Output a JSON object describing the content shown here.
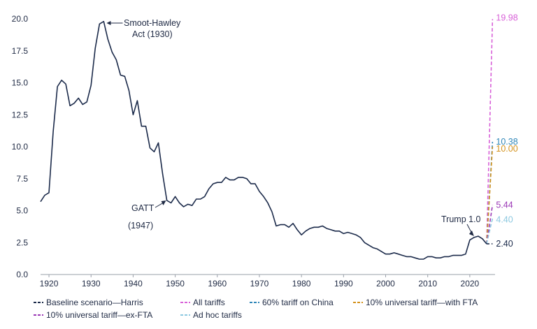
{
  "chart_data": {
    "type": "line",
    "title": "",
    "xlabel": "",
    "ylabel": "",
    "xlim": [
      1918,
      2026
    ],
    "ylim": [
      0,
      20
    ],
    "x_ticks": [
      1920,
      1930,
      1940,
      1950,
      1960,
      1970,
      1980,
      1990,
      2000,
      2010,
      2020
    ],
    "y_ticks": [
      "0.0",
      "2.5",
      "5.0",
      "7.5",
      "10.0",
      "12.5",
      "15.0",
      "17.5",
      "20.0"
    ],
    "grid": false,
    "baseline": {
      "name": "Baseline scenario—Harris",
      "color": "#1b2a4a",
      "x": [
        1918,
        1919,
        1920,
        1921,
        1922,
        1923,
        1924,
        1925,
        1926,
        1927,
        1928,
        1929,
        1930,
        1931,
        1932,
        1933,
        1934,
        1935,
        1936,
        1937,
        1938,
        1939,
        1940,
        1941,
        1942,
        1943,
        1944,
        1945,
        1946,
        1947,
        1948,
        1949,
        1950,
        1951,
        1952,
        1953,
        1954,
        1955,
        1956,
        1957,
        1958,
        1959,
        1960,
        1961,
        1962,
        1963,
        1964,
        1965,
        1966,
        1967,
        1968,
        1969,
        1970,
        1971,
        1972,
        1973,
        1974,
        1975,
        1976,
        1977,
        1978,
        1979,
        1980,
        1981,
        1982,
        1983,
        1984,
        1985,
        1986,
        1987,
        1988,
        1989,
        1990,
        1991,
        1992,
        1993,
        1994,
        1995,
        1996,
        1997,
        1998,
        1999,
        2000,
        2001,
        2002,
        2003,
        2004,
        2005,
        2006,
        2007,
        2008,
        2009,
        2010,
        2011,
        2012,
        2013,
        2014,
        2015,
        2016,
        2017,
        2018,
        2019,
        2020,
        2021,
        2022,
        2023,
        2024
      ],
      "values": [
        5.7,
        6.2,
        6.4,
        11.2,
        14.7,
        15.2,
        14.9,
        13.2,
        13.4,
        13.8,
        13.3,
        13.5,
        14.8,
        17.7,
        19.6,
        19.8,
        18.4,
        17.4,
        16.8,
        15.6,
        15.5,
        14.4,
        12.5,
        13.6,
        11.6,
        11.6,
        9.9,
        9.6,
        10.3,
        7.9,
        5.8,
        5.6,
        6.1,
        5.6,
        5.3,
        5.5,
        5.4,
        5.9,
        5.9,
        6.1,
        6.7,
        7.1,
        7.2,
        7.2,
        7.6,
        7.4,
        7.4,
        7.6,
        7.6,
        7.5,
        7.1,
        7.1,
        6.5,
        6.1,
        5.6,
        4.9,
        3.8,
        3.9,
        3.9,
        3.7,
        4.0,
        3.5,
        3.1,
        3.4,
        3.6,
        3.7,
        3.7,
        3.8,
        3.6,
        3.5,
        3.4,
        3.4,
        3.2,
        3.3,
        3.2,
        3.1,
        2.9,
        2.5,
        2.3,
        2.1,
        2.0,
        1.8,
        1.6,
        1.6,
        1.7,
        1.6,
        1.5,
        1.4,
        1.4,
        1.3,
        1.2,
        1.2,
        1.4,
        1.4,
        1.3,
        1.3,
        1.4,
        1.4,
        1.5,
        1.5,
        1.5,
        1.6,
        2.7,
        2.9,
        3.0,
        2.8,
        2.4
      ]
    },
    "scenarios": [
      {
        "name": "All tariffs",
        "color": "#d861d8",
        "value": 19.98,
        "label": "19.98"
      },
      {
        "name": "60% tariff on China",
        "color": "#2e86b8",
        "value": 10.38,
        "label": "10.38"
      },
      {
        "name": "10% universal tariff—with FTA",
        "color": "#d4921c",
        "value": 10.0,
        "label": "10.00"
      },
      {
        "name": "10% universal tariff—ex-FTA",
        "color": "#9a37b5",
        "value": 5.44,
        "label": "5.44"
      },
      {
        "name": "Ad hoc tariffs",
        "color": "#8cc8e0",
        "value": 4.4,
        "label": "4.40"
      }
    ],
    "scenario_start": {
      "x": 2024,
      "y": 2.4
    },
    "scenario_end_x": 2025.4,
    "baseline_end_label": "2.40",
    "annotations": [
      {
        "text": "Smoot-Hawley",
        "x": 1933.2,
        "y": 19.7
      },
      {
        "text": "Act (1930)",
        "x": 1933.2,
        "y": 19.7
      },
      {
        "text": "GATT",
        "x": 1948,
        "y": 5.9
      },
      {
        "text": "(1947)",
        "x": 1948,
        "y": 5.9
      },
      {
        "text": "Trump 1.0",
        "x": 2021,
        "y": 2.95
      }
    ],
    "legend": [
      "Baseline scenario—Harris",
      "All tariffs",
      "60% tariff on China",
      "10% universal tariff—with FTA",
      "10% universal tariff—ex-FTA",
      "Ad hoc tariffs"
    ]
  }
}
